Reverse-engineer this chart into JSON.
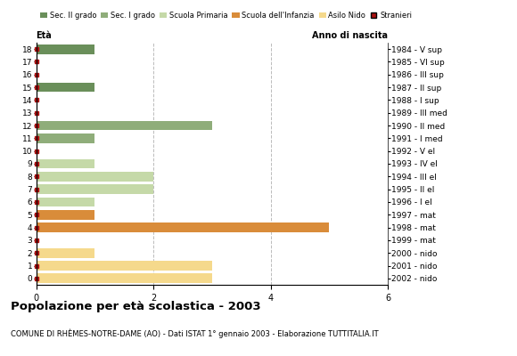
{
  "ages": [
    0,
    1,
    2,
    3,
    4,
    5,
    6,
    7,
    8,
    9,
    10,
    11,
    12,
    13,
    14,
    15,
    16,
    17,
    18
  ],
  "years": [
    "2002 - nido",
    "2001 - nido",
    "2000 - nido",
    "1999 - mat",
    "1998 - mat",
    "1997 - mat",
    "1996 - I el",
    "1995 - II el",
    "1994 - III el",
    "1993 - IV el",
    "1992 - V el",
    "1991 - I med",
    "1990 - II med",
    "1989 - III med",
    "1988 - I sup",
    "1987 - II sup",
    "1986 - III sup",
    "1985 - VI sup",
    "1984 - V sup"
  ],
  "values": [
    3.0,
    3.0,
    1.0,
    0.0,
    5.0,
    1.0,
    1.0,
    2.0,
    2.0,
    1.0,
    0.0,
    1.0,
    3.0,
    0.0,
    0.0,
    1.0,
    0.0,
    0.0,
    1.0
  ],
  "bar_colors": [
    "#f5d98c",
    "#f5d98c",
    "#f5d98c",
    "#d98c3a",
    "#d98c3a",
    "#d98c3a",
    "#c5d9a8",
    "#c5d9a8",
    "#c5d9a8",
    "#c5d9a8",
    "#c5d9a8",
    "#8fad7a",
    "#8fad7a",
    "#8fad7a",
    "#6a8f5a",
    "#6a8f5a",
    "#6a8f5a",
    "#6a8f5a",
    "#6a8f5a"
  ],
  "legend_labels": [
    "Sec. II grado",
    "Sec. I grado",
    "Scuola Primaria",
    "Scuola dell'Infanzia",
    "Asilo Nido",
    "Stranieri"
  ],
  "legend_colors": [
    "#6a8f5a",
    "#8fad7a",
    "#c5d9a8",
    "#d98c3a",
    "#f5d98c",
    "#aa1111"
  ],
  "title": "Popolazione per età scolastica - 2003",
  "subtitle": "COMUNE DI RHÈMES-NOTRE-DAME (AO) - Dati ISTAT 1° gennaio 2003 - Elaborazione TUTTITALIA.IT",
  "label_left": "Età",
  "label_right": "Anno di nascita",
  "xlim": [
    0,
    6
  ],
  "xticks": [
    0,
    2,
    4,
    6
  ],
  "background_color": "#ffffff",
  "grid_color": "#bbbbbb"
}
